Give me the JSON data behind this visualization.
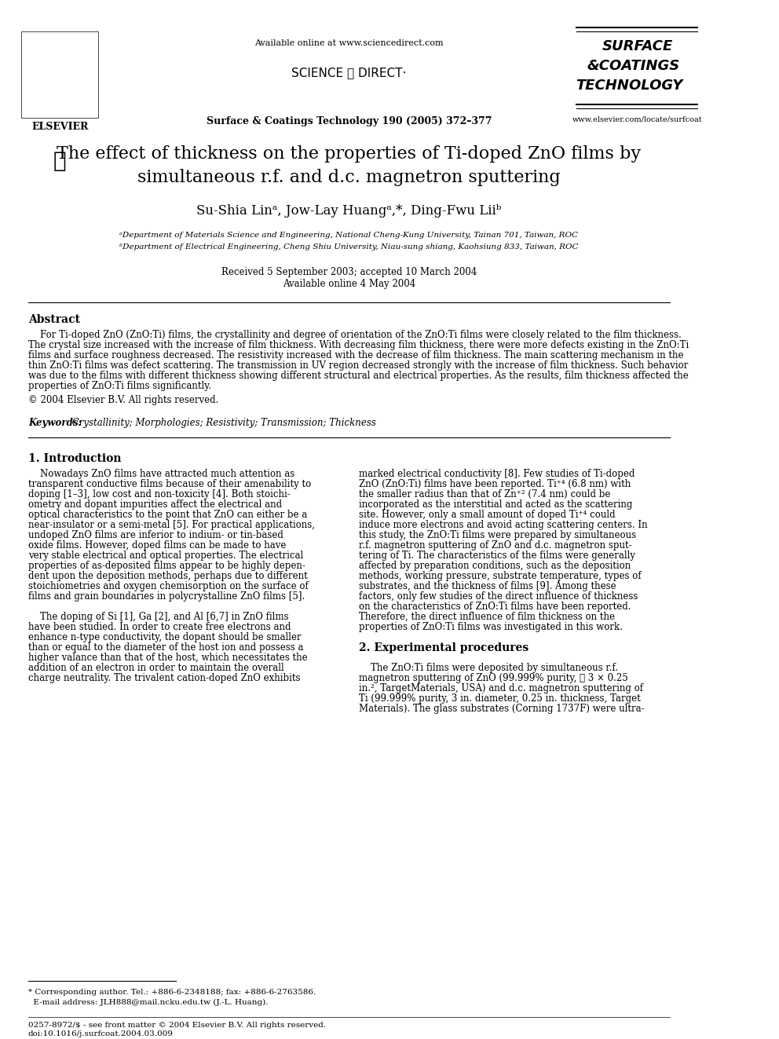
{
  "bg_color": "#ffffff",
  "header": {
    "available_online": "Available online at www.sciencedirect.com",
    "science_direct": "SCIENCE ⓐ DIRECT·",
    "journal_line": "Surface & Coatings Technology 190 (2005) 372–377",
    "elsevier_text": "ELSEVIER",
    "journal_logo_lines": [
      "SURFACE",
      "&COATINGS",
      "TECHNOLOGY"
    ],
    "website": "www.elsevier.com/locate/surfcoat"
  },
  "title_line1": "The effect of thickness on the properties of Ti-doped ZnO films by",
  "title_line2": "simultaneous r.f. and d.c. magnetron sputtering",
  "authors": "Su-Shia Linᵃ, Jow-Lay Huangᵃ,*, Ding-Fwu Liiᵇ",
  "affil_a": "ᵃDepartment of Materials Science and Engineering, National Cheng-Kung University, Tainan 701, Taiwan, ROC",
  "affil_b": "ᵇDepartment of Electrical Engineering, Cheng Shiu University, Niau-sung shiang, Kaohsiung 833, Taiwan, ROC",
  "received": "Received 5 September 2003; accepted 10 March 2004",
  "available": "Available online 4 May 2004",
  "abstract_heading": "Abstract",
  "abstract_text": "    For Ti-doped ZnO (ZnO:Ti) films, the crystallinity and degree of orientation of the ZnO:Ti films were closely related to the film thickness. The crystal size increased with the increase of film thickness. With decreasing film thickness, there were more defects existing in the ZnO:Ti films and surface roughness decreased. The resistivity increased with the decrease of film thickness. The main scattering mechanism in the thin ZnO:Ti films was defect scattering. The transmission in UV region decreased strongly with the increase of film thickness. Such behavior was due to the films with different thickness showing different structural and electrical properties. As the results, film thickness affected the properties of ZnO:Ti films significantly.",
  "copyright": "© 2004 Elsevier B.V. All rights reserved.",
  "keywords_label": "Keywords:",
  "keywords_text": " Crystallinity; Morphologies; Resistivity; Transmission; Thickness",
  "section1_heading": "1. Introduction",
  "intro_col1_para1": "    Nowadays ZnO films have attracted much attention as transparent conductive films because of their amenability to doping [1–3], low cost and non-toxicity [4]. Both stoichiometry and dopant impurities affect the electrical and optical characteristics to the point that ZnO can either be a near-insulator or a semi-metal [5]. For practical applications, undoped ZnO films are inferior to indium- or tin-based oxide films. However, doped films can be made to have very stable electrical and optical properties. The electrical properties of as-deposited films appear to be highly dependent upon the deposition methods, perhaps due to different stoichiometries and oxygen chemisorption on the surface of films and grain boundaries in polycrystalline ZnO films [5].",
  "intro_col1_para2": "    The doping of Si [1], Ga [2], and Al [6,7] in ZnO films have been studied. In order to create free electrons and enhance n-type conductivity, the dopant should be smaller than or equal to the diameter of the host ion and possess a higher valance than that of the host, which necessitates the addition of an electron in order to maintain the overall charge neutrality. The trivalent cation-doped ZnO exhibits",
  "intro_col2_para1": "marked electrical conductivity [8]. Few studies of Ti-doped ZnO (ZnO:Ti) films have been reported. Ti⁺⁴ (6.8 nm) with the smaller radius than that of Zn⁺² (7.4 nm) could be incorporated as the interstitial and acted as the scattering site. However, only a small amount of doped Ti⁺⁴ could induce more electrons and avoid acting scattering centers. In this study, the ZnO:Ti films were prepared by simultaneous r.f. magnetron sputtering of ZnO and d.c. magnetron sputtering of Ti. The characteristics of the films were generally affected by preparation conditions, such as the deposition methods, working pressure, substrate temperature, types of substrates, and the thickness of films [9]. Among these factors, only few studies of the direct influence of thickness on the characteristics of ZnO:Ti films have been reported. Therefore, the direct influence of film thickness on the properties of ZnO:Ti films was investigated in this work.",
  "section2_heading": "2. Experimental procedures",
  "section2_col2_text": "    The ZnO:Ti films were deposited by simultaneous r.f. magnetron sputtering of ZnO (99.999% purity, ⌀ 3 × 0.25 in.², TargetMaterials, USA) and d.c. magnetron sputtering of Ti (99.999% purity, 3 in. diameter, 0.25 in. thickness, Target Materials). The glass substrates (Corning 1737F) were ultra-",
  "footnote_line1": "* Corresponding author. Tel.: +886-6-2348188; fax: +886-6-2763586.",
  "footnote_line2": "  E-mail address: JLH888@mail.ncku.edu.tw (J.-L. Huang).",
  "bottom_line1": "0257-8972/$ - see front matter © 2004 Elsevier B.V. All rights reserved.",
  "bottom_line2": "doi:10.1016/j.surfcoat.2004.03.009"
}
